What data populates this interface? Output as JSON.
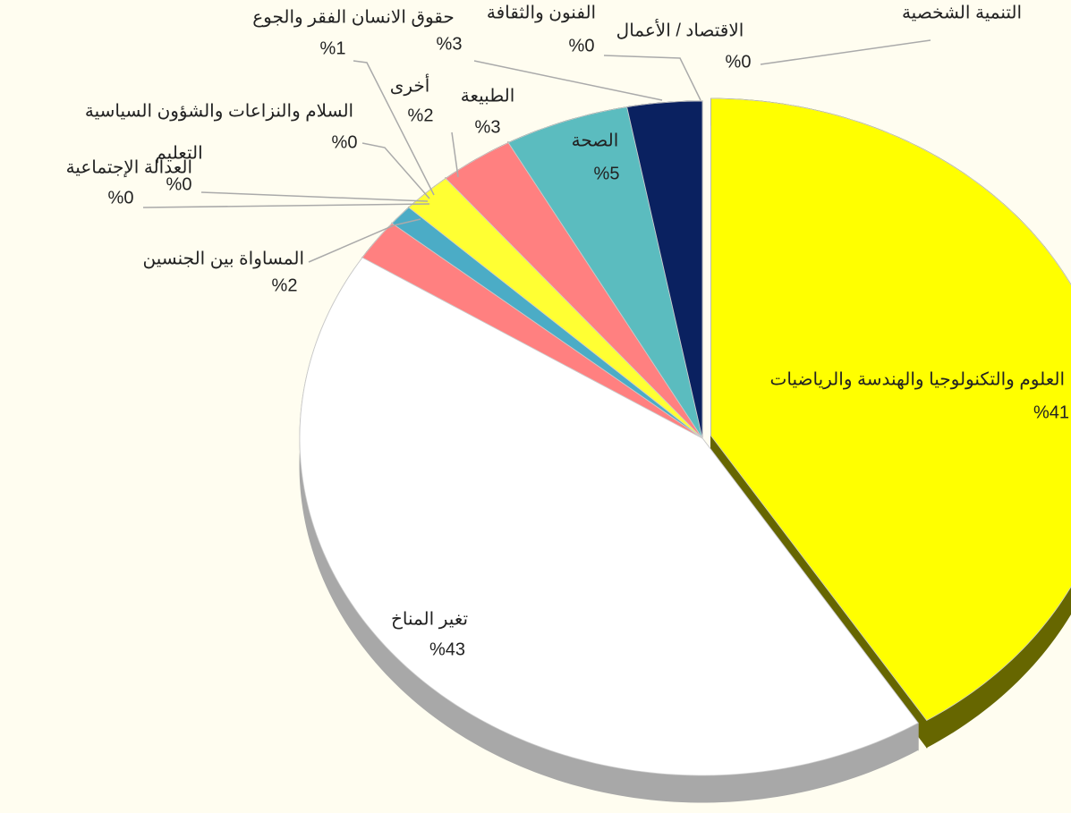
{
  "chart_data": {
    "type": "pie",
    "categories": [
      "العلوم والتكنولوجيا والهندسة والرياضيات",
      "تغير المناخ",
      "المساواة بين الجنسين",
      "العدالة الإجتماعية",
      "التعليم",
      "السلام والنزاعات والشؤون السياسية",
      "حقوق الانسان الفقر والجوع",
      "أخرى",
      "الطبيعة",
      "الصحة",
      "الفنون والثقافة",
      "الاقتصاد / الأعمال",
      "التنمية الشخصية"
    ],
    "values": [
      41,
      43,
      2,
      0,
      0,
      0,
      1,
      2,
      3,
      5,
      3,
      0,
      0
    ],
    "value_labels": [
      "%41",
      "%43",
      "%2",
      "%0",
      "%0",
      "%0",
      "%1",
      "%2",
      "%3",
      "%5",
      "%3",
      "%0",
      "%0"
    ],
    "colors": [
      "#ffff00",
      "#ffffff",
      "#ff8080",
      "#4bacc6",
      "#4bacc6",
      "#4bacc6",
      "#4bacc6",
      "#ffff33",
      "#ff8080",
      "#5bbcbf",
      "#0a2160",
      "#0a2160",
      "#0a2160"
    ]
  }
}
